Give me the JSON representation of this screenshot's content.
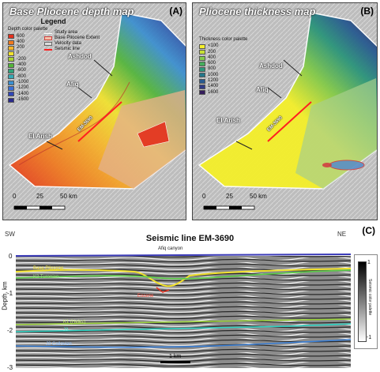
{
  "panel_a": {
    "title": "Base Pliocene depth map",
    "letter": "(A)",
    "legend_title": "Legend",
    "palette_title": "Depth color palette",
    "palette": [
      {
        "label": "600",
        "color": "#e4301d"
      },
      {
        "label": "400",
        "color": "#f07a1e"
      },
      {
        "label": "200",
        "color": "#f7b42a"
      },
      {
        "label": "0",
        "color": "#f2e22d"
      },
      {
        "label": "-200",
        "color": "#a7d232"
      },
      {
        "label": "-400",
        "color": "#52b53a"
      },
      {
        "label": "-600",
        "color": "#2fa27a"
      },
      {
        "label": "-800",
        "color": "#35aab5"
      },
      {
        "label": "-1000",
        "color": "#3a8fd0"
      },
      {
        "label": "-1200",
        "color": "#3a6fd6"
      },
      {
        "label": "-1400",
        "color": "#3046b8"
      },
      {
        "label": "-1600",
        "color": "#2a2a8c"
      }
    ],
    "keys": [
      {
        "label": "Study area",
        "style": "line-white"
      },
      {
        "label": "Base Pliocene Extent",
        "style": "box-red"
      },
      {
        "label": "Velocity data",
        "style": "box-grey"
      },
      {
        "label": "Seismic line",
        "style": "line-red"
      }
    ],
    "cities": [
      "Ashdod",
      "Afiq",
      "El Arish"
    ],
    "seismic_label": "EM-3690",
    "scale": [
      "0",
      "25",
      "50 km"
    ]
  },
  "panel_b": {
    "title": "Pliocene thickness map",
    "letter": "(B)",
    "palette_title": "Thickness color palette",
    "palette": [
      {
        "label": "<100",
        "color": "#f4ef2a"
      },
      {
        "label": "200",
        "color": "#c6e034"
      },
      {
        "label": "400",
        "color": "#82c94a"
      },
      {
        "label": "600",
        "color": "#45ae5d"
      },
      {
        "label": "800",
        "color": "#2c957a"
      },
      {
        "label": "1000",
        "color": "#24778a"
      },
      {
        "label": "1200",
        "color": "#285a90"
      },
      {
        "label": "1400",
        "color": "#2f3b86"
      },
      {
        "label": "1600",
        "color": "#351d5c"
      }
    ],
    "cities": [
      "Ashdod",
      "Afiq",
      "El Arish"
    ],
    "seismic_label": "EM-3690",
    "scale": [
      "0",
      "25",
      "50 km"
    ]
  },
  "panel_c": {
    "title": "Seismic line EM-3690",
    "letter": "(C)",
    "left_dir": "SW",
    "right_dir": "NE",
    "y_axis_label": "Depth, km",
    "y_ticks": [
      "0",
      "-1",
      "-2",
      "-3"
    ],
    "canyon_label": "Afiq canyon",
    "horizons": [
      {
        "name": "Base Pliocene",
        "color": "#f2e22d"
      },
      {
        "name": "K3 Turonian",
        "color": "#5cc94a"
      },
      {
        "name": "Eocene",
        "color": "#e03020"
      },
      {
        "name": "K1 (Helez)",
        "color": "#9ad13a"
      },
      {
        "name": "J3",
        "color": "#2fd0c0"
      },
      {
        "name": "J2 Callovian",
        "color": "#3a7fd6"
      }
    ],
    "colorbar_max": "1",
    "colorbar_min": "-1",
    "colorbar_label": "Seismic color palette",
    "scale_bar": "1 km"
  }
}
